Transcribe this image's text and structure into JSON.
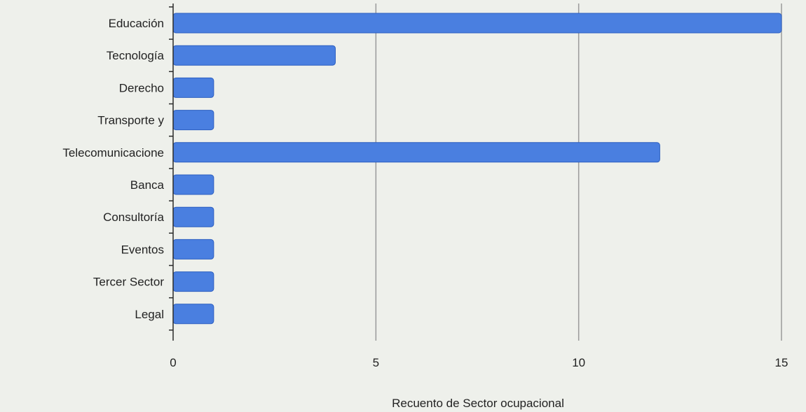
{
  "chart_data": {
    "type": "bar",
    "orientation": "horizontal",
    "categories": [
      "Educación",
      "Tecnología",
      "Derecho",
      "Transporte y",
      "Telecomunicacione",
      "Banca",
      "Consultoría",
      "Eventos",
      "Tercer Sector",
      "Legal"
    ],
    "values": [
      15,
      4,
      1,
      1,
      12,
      1,
      1,
      1,
      1,
      1
    ],
    "xlabel": "Recuento de Sector ocupacional",
    "ylabel": "",
    "xlim": [
      0,
      15
    ],
    "xticks": [
      0,
      5,
      10,
      15
    ],
    "xtick_labels": [
      "0",
      "5",
      "10",
      "15"
    ],
    "grid": true,
    "legend": "none",
    "bar_color": "#4a7fe0",
    "bar_stroke": "#2d5fc0",
    "background": "#eef0eb"
  }
}
